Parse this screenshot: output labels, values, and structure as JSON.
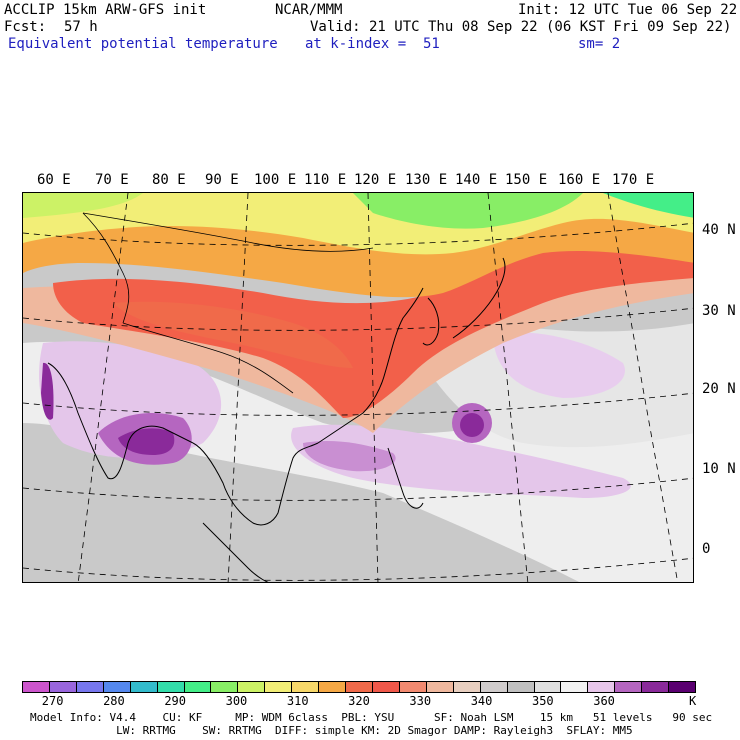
{
  "header": {
    "left_line1": "ACCLIP 15km ARW-GFS init",
    "center_line1": "NCAR/MMM",
    "init": "Init: 12 UTC Tue 06 Sep 22",
    "fcst_label": "Fcst:",
    "fcst_value": "57 h",
    "valid": "Valid: 21 UTC Thu 08 Sep 22 (06 KST Fri 09 Sep 22)",
    "field": "Equivalent potential temperature",
    "level": "at k-index =  51",
    "smoothing": "sm= 2"
  },
  "map": {
    "lon_labels": [
      "60 E",
      "70 E",
      "80 E",
      "90 E",
      "100 E",
      "110 E",
      "120 E",
      "130 E",
      "140 E",
      "150 E",
      "160 E",
      "170 E"
    ],
    "lat_labels": [
      "40 N",
      "30 N",
      "20 N",
      "10 N",
      "0"
    ]
  },
  "colorbar": {
    "unit": "K",
    "tick_labels": [
      "270",
      "280",
      "290",
      "300",
      "310",
      "320",
      "330",
      "340",
      "350",
      "360"
    ],
    "tick_values": [
      270,
      280,
      290,
      300,
      310,
      320,
      330,
      340,
      350,
      360
    ],
    "range": [
      265,
      375
    ],
    "colors": [
      "#cc55cc",
      "#9966dd",
      "#7777ee",
      "#5588ee",
      "#33bbcc",
      "#33ddaa",
      "#44ee88",
      "#88ee66",
      "#ccf266",
      "#f2ee77",
      "#f7d86a",
      "#f5a845",
      "#f06a4a",
      "#f0584a",
      "#f28a70",
      "#efb89e",
      "#e8cfc0",
      "#d0cccc",
      "#c0c0c0",
      "#e0e0e0",
      "#f2f2f2",
      "#e7c6ea",
      "#b566c0",
      "#8a2a9a",
      "#5a0070"
    ]
  },
  "footer": {
    "line1": "Model Info: V4.4    CU: KF     MP: WDM 6class  PBL: YSU      SF: Noah LSM    15 km   51 levels   90 sec",
    "line2": "             LW: RRTMG    SW: RRTMG  DIFF: simple KM: 2D Smagor DAMP: Rayleigh3  SFLAY: MM5"
  }
}
